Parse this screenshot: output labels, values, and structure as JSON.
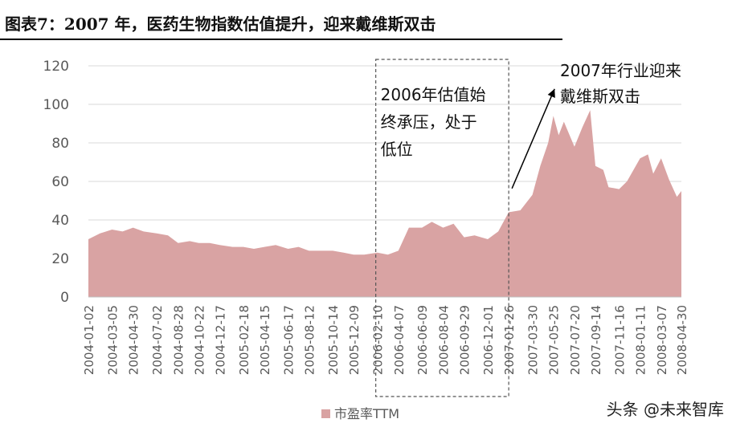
{
  "figure": {
    "title": "图表7：2007 年，医药生物指数估值提升，迎来戴维斯双击",
    "watermark": "头条 @未来智库"
  },
  "chart_data": {
    "type": "area",
    "series": [
      {
        "name": "市盈率TTM",
        "color": "#d9a3a3",
        "dates": [
          "2004-01-02",
          "2004-02-02",
          "2004-03-05",
          "2004-04-02",
          "2004-04-30",
          "2004-05-28",
          "2004-07-02",
          "2004-08-01",
          "2004-08-28",
          "2004-09-28",
          "2004-10-22",
          "2004-11-20",
          "2004-12-17",
          "2005-01-20",
          "2005-02-18",
          "2005-03-18",
          "2005-04-15",
          "2005-05-15",
          "2005-06-17",
          "2005-07-15",
          "2005-08-12",
          "2005-09-15",
          "2005-10-14",
          "2005-11-12",
          "2005-12-09",
          "2006-01-06",
          "2006-02-10",
          "2006-03-10",
          "2006-04-07",
          "2006-05-05",
          "2006-06-09",
          "2006-07-05",
          "2006-08-04",
          "2006-09-01",
          "2006-09-29",
          "2006-10-27",
          "2006-12-01",
          "2006-12-29",
          "2007-01-26",
          "2007-02-26",
          "2007-03-30",
          "2007-04-20",
          "2007-05-11",
          "2007-05-25",
          "2007-06-08",
          "2007-06-22",
          "2007-07-20",
          "2007-08-10",
          "2007-08-31",
          "2007-09-14",
          "2007-10-05",
          "2007-10-19",
          "2007-11-16",
          "2007-12-07",
          "2008-01-11",
          "2008-02-01",
          "2008-02-15",
          "2008-03-07",
          "2008-03-28",
          "2008-04-18",
          "2008-04-30"
        ],
        "values": [
          30,
          33,
          35,
          34,
          36,
          34,
          33,
          32,
          28,
          29,
          28,
          28,
          27,
          26,
          26,
          25,
          26,
          27,
          25,
          26,
          24,
          24,
          24,
          23,
          22,
          22,
          23,
          22,
          24,
          36,
          36,
          39,
          36,
          38,
          31,
          32,
          30,
          34,
          44,
          45,
          53,
          68,
          80,
          94,
          84,
          91,
          78,
          88,
          97,
          68,
          66,
          57,
          56,
          60,
          72,
          74,
          64,
          72,
          61,
          52,
          55
        ]
      }
    ],
    "xticks": [
      "2004-01-02",
      "2004-03-05",
      "2004-04-30",
      "2004-07-02",
      "2004-08-28",
      "2004-10-22",
      "2004-12-17",
      "2005-02-18",
      "2005-04-15",
      "2005-06-17",
      "2005-08-12",
      "2005-10-14",
      "2005-12-09",
      "2006-02-10",
      "2006-04-07",
      "2006-06-09",
      "2006-08-04",
      "2006-09-29",
      "2006-12-01",
      "2007-01-26",
      "2007-03-30",
      "2007-05-25",
      "2007-07-20",
      "2007-09-14",
      "2007-11-16",
      "2008-01-11",
      "2008-03-07",
      "2008-04-30"
    ],
    "yticks": [
      0,
      20,
      40,
      60,
      80,
      100,
      120
    ],
    "ylim": [
      0,
      120
    ],
    "grid": "horizontal",
    "legend": "bottom",
    "annotations": [
      {
        "lines": [
          "2006年估值始",
          "终承压，处于",
          "低位"
        ],
        "kind": "dashed-box",
        "span": [
          "2006-02-10",
          "2007-01-26"
        ]
      },
      {
        "lines": [
          "2007年行业迎来",
          "戴维斯双击"
        ],
        "kind": "arrow",
        "arrow_from": [
          "2007-01-26",
          58
        ],
        "arrow_to": [
          "2007-05-11",
          108
        ]
      }
    ]
  }
}
